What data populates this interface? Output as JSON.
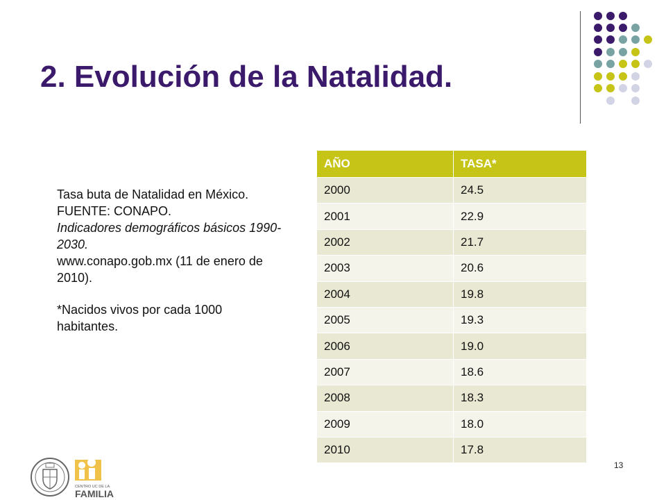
{
  "slide": {
    "title": "2. Evolución de la Natalidad.",
    "page_number": "13"
  },
  "caption": {
    "line1": "Tasa buta de Natalidad en México. FUENTE:  CONAPO.",
    "line2_italic": "Indicadores demográficos básicos 1990-2030.",
    "line3": "www.conapo.gob.mx (11 de enero de 2010).",
    "note": "*Nacidos vivos por cada 1000 habitantes."
  },
  "table": {
    "headers": [
      "AÑO",
      "TASA*"
    ],
    "rows": [
      [
        "2000",
        "24.5"
      ],
      [
        "2001",
        "22.9"
      ],
      [
        "2002",
        "21.7"
      ],
      [
        "2003",
        "20.6"
      ],
      [
        "2004",
        "19.8"
      ],
      [
        "2005",
        "19.3"
      ],
      [
        "2006",
        "19.0"
      ],
      [
        "2007",
        "18.6"
      ],
      [
        "2008",
        "18.3"
      ],
      [
        "2009",
        "18.0"
      ],
      [
        "2010",
        "17.8"
      ]
    ]
  },
  "logos": {
    "familia_small": "CENTRO UC DE LA",
    "familia_big": "FAMILIA"
  },
  "colors": {
    "purple": "#3b1a6b",
    "teal": "#79a3a3",
    "olive": "#c5c417",
    "lavender": "#d3d3e6"
  }
}
